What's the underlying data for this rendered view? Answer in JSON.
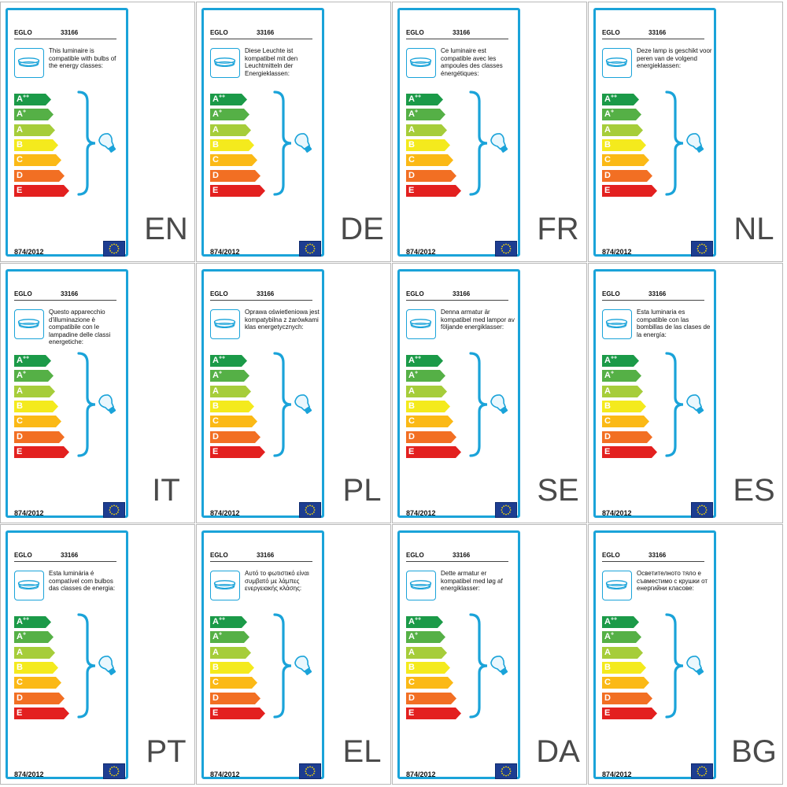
{
  "brand": "EGLO",
  "model": "33166",
  "regulation": "874/2012",
  "colors": {
    "frame": "#1aa3d9",
    "eu_flag": "#1d3d91",
    "eu_stars": "#ffdd00"
  },
  "energy_classes": [
    {
      "letter": "A",
      "sup": "++",
      "color": "#1b9a48"
    },
    {
      "letter": "A",
      "sup": "+",
      "color": "#55b046"
    },
    {
      "letter": "A",
      "sup": "",
      "color": "#a6cd3a"
    },
    {
      "letter": "B",
      "sup": "",
      "color": "#f4ea1d"
    },
    {
      "letter": "C",
      "sup": "",
      "color": "#fbb916"
    },
    {
      "letter": "D",
      "sup": "",
      "color": "#f26f23"
    },
    {
      "letter": "E",
      "sup": "",
      "color": "#e3201f"
    }
  ],
  "labels": [
    {
      "lang": "EN",
      "text": "This luminaire is compatible with bulbs of the energy classes:"
    },
    {
      "lang": "DE",
      "text": "Diese Leuchte ist kompatibel mit den Leuchtmitteln der Energieklassen:"
    },
    {
      "lang": "FR",
      "text": "Ce luminaire est compatible avec les ampoules des classes énergétiques:"
    },
    {
      "lang": "NL",
      "text": "Deze lamp is geschikt voor peren van de volgend energieklassen:"
    },
    {
      "lang": "IT",
      "text": "Questo apparecchio d'illuminazione è compatibile con le lampadine delle classi energetiche:"
    },
    {
      "lang": "PL",
      "text": "Oprawa oświetleniowa jest kompatybilna z żarówkami klas energetycznych:"
    },
    {
      "lang": "SE",
      "text": "Denna armatur är kompatibel med lampor av följande energiklasser:"
    },
    {
      "lang": "ES",
      "text": "Esta luminaria es compatible con las bombillas de las clases de la energía:"
    },
    {
      "lang": "PT",
      "text": "Esta luminária é compatível com bulbos das classes de energia:"
    },
    {
      "lang": "EL",
      "text": "Αυτό το φωτιστικό είναι συμβατό με λάμπες ενεργειακής κλάσης:"
    },
    {
      "lang": "DA",
      "text": "Dette armatur er kompatibel med løg af energiklasser:"
    },
    {
      "lang": "BG",
      "text": "Осветителното тяло е съвместимо с крушки от енергийни класове:"
    }
  ]
}
